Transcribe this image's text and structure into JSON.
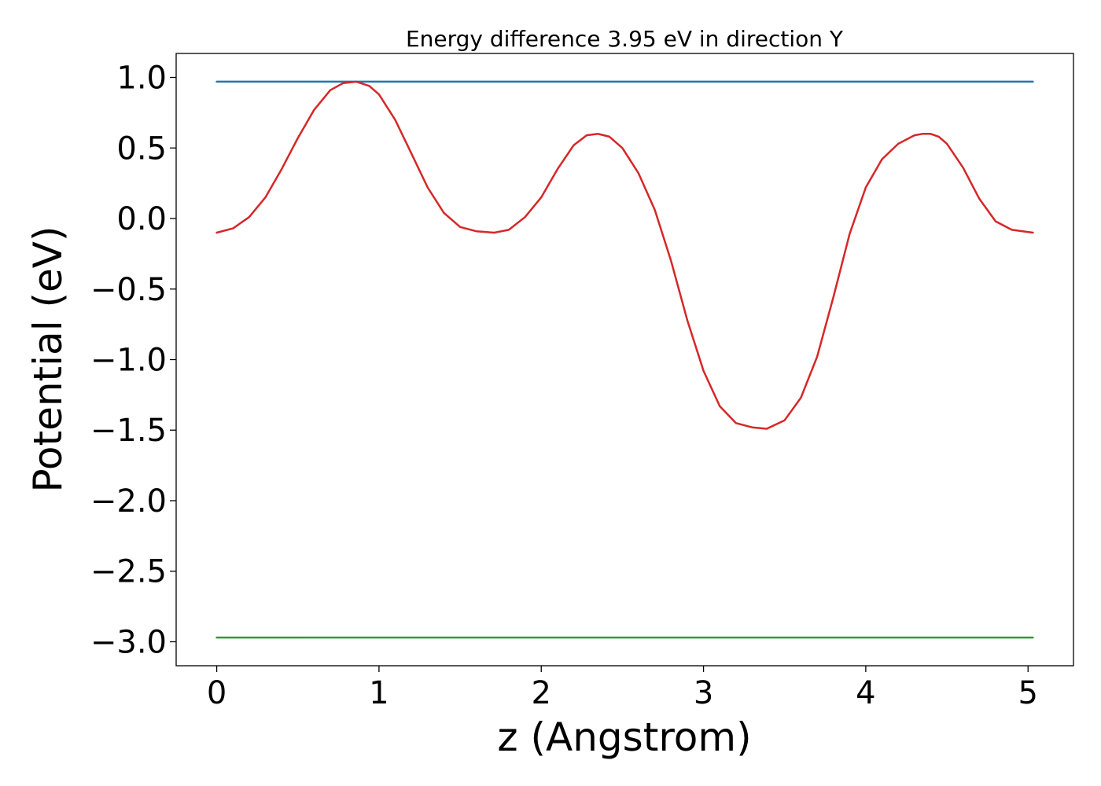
{
  "chart_data": {
    "type": "line",
    "title": "Energy difference 3.95 eV in direction Y",
    "xlabel": "z (Angstrom)",
    "ylabel": "Potential (eV)",
    "xlim": [
      -0.25,
      5.28
    ],
    "ylim": [
      -3.17,
      1.17
    ],
    "xticks": [
      0,
      1,
      2,
      3,
      4,
      5
    ],
    "xtick_labels": [
      "0",
      "1",
      "2",
      "3",
      "4",
      "5"
    ],
    "yticks": [
      1.0,
      0.5,
      0.0,
      -0.5,
      -1.0,
      -1.5,
      -2.0,
      -2.5,
      -3.0
    ],
    "ytick_labels": [
      "1.0",
      "0.5",
      "0.0",
      "−0.5",
      "−1.0",
      "−1.5",
      "−2.0",
      "−2.5",
      "−3.0"
    ],
    "grid": false,
    "legend": false,
    "series": [
      {
        "color": "#1f77b4",
        "x": [
          0,
          5.03
        ],
        "y": [
          0.97,
          0.97
        ]
      },
      {
        "color": "#2ca02c",
        "x": [
          0,
          5.03
        ],
        "y": [
          -2.97,
          -2.97
        ]
      },
      {
        "color": "#d62728",
        "x": [
          0,
          0.1,
          0.2,
          0.3,
          0.4,
          0.5,
          0.6,
          0.7,
          0.78,
          0.86,
          0.94,
          1.0,
          1.1,
          1.2,
          1.3,
          1.4,
          1.5,
          1.6,
          1.71,
          1.8,
          1.9,
          2.0,
          2.1,
          2.2,
          2.28,
          2.35,
          2.42,
          2.5,
          2.6,
          2.7,
          2.8,
          2.9,
          3.0,
          3.1,
          3.2,
          3.3,
          3.39,
          3.5,
          3.6,
          3.7,
          3.8,
          3.9,
          4.0,
          4.1,
          4.2,
          4.3,
          4.35,
          4.4,
          4.45,
          4.5,
          4.6,
          4.7,
          4.8,
          4.9,
          5.03
        ],
        "y": [
          -0.1,
          -0.07,
          0.01,
          0.15,
          0.35,
          0.57,
          0.77,
          0.91,
          0.96,
          0.97,
          0.94,
          0.88,
          0.7,
          0.46,
          0.22,
          0.04,
          -0.06,
          -0.09,
          -0.1,
          -0.08,
          0.01,
          0.15,
          0.35,
          0.52,
          0.59,
          0.6,
          0.58,
          0.5,
          0.32,
          0.06,
          -0.3,
          -0.72,
          -1.08,
          -1.33,
          -1.45,
          -1.48,
          -1.49,
          -1.43,
          -1.27,
          -0.98,
          -0.56,
          -0.11,
          0.22,
          0.42,
          0.53,
          0.59,
          0.6,
          0.6,
          0.58,
          0.53,
          0.36,
          0.14,
          -0.02,
          -0.08,
          -0.1
        ]
      }
    ]
  }
}
